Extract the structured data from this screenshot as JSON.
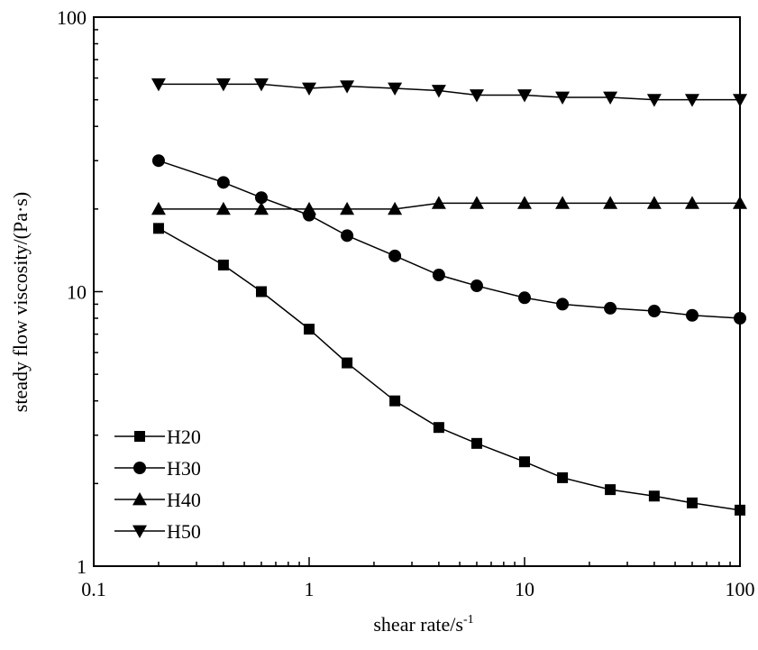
{
  "chart_data": {
    "type": "line",
    "xlabel": "shear rate/s",
    "xlabel_sup": "-1",
    "ylabel": "steady flow viscosity/(Pa·s)",
    "xscale": "log",
    "yscale": "log",
    "xlim": [
      0.1,
      100
    ],
    "ylim": [
      1,
      100
    ],
    "xticks": [
      0.1,
      1,
      10,
      100
    ],
    "xtick_labels": [
      "0.1",
      "1",
      "10",
      "100"
    ],
    "yticks": [
      1,
      10,
      100
    ],
    "ytick_labels": [
      "1",
      "10",
      "100"
    ],
    "grid": false,
    "legend_position": "bottom-left",
    "x": [
      0.2,
      0.4,
      0.6,
      1,
      1.5,
      2.5,
      4,
      6,
      10,
      15,
      25,
      40,
      60,
      100
    ],
    "series": [
      {
        "name": "H20",
        "marker": "square",
        "values": [
          17,
          12.5,
          10,
          7.3,
          5.5,
          4.0,
          3.2,
          2.8,
          2.4,
          2.1,
          1.9,
          1.8,
          1.7,
          1.6
        ]
      },
      {
        "name": "H30",
        "marker": "circle",
        "values": [
          30,
          25,
          22,
          19,
          16,
          13.5,
          11.5,
          10.5,
          9.5,
          9.0,
          8.7,
          8.5,
          8.2,
          8.0
        ]
      },
      {
        "name": "H40",
        "marker": "triangle-up",
        "values": [
          20,
          20,
          20,
          20,
          20,
          20,
          21,
          21,
          21,
          21,
          21,
          21,
          21,
          21
        ]
      },
      {
        "name": "H50",
        "marker": "triangle-down",
        "values": [
          57,
          57,
          57,
          55,
          56,
          55,
          54,
          52,
          52,
          51,
          51,
          50,
          50,
          50
        ]
      }
    ]
  }
}
